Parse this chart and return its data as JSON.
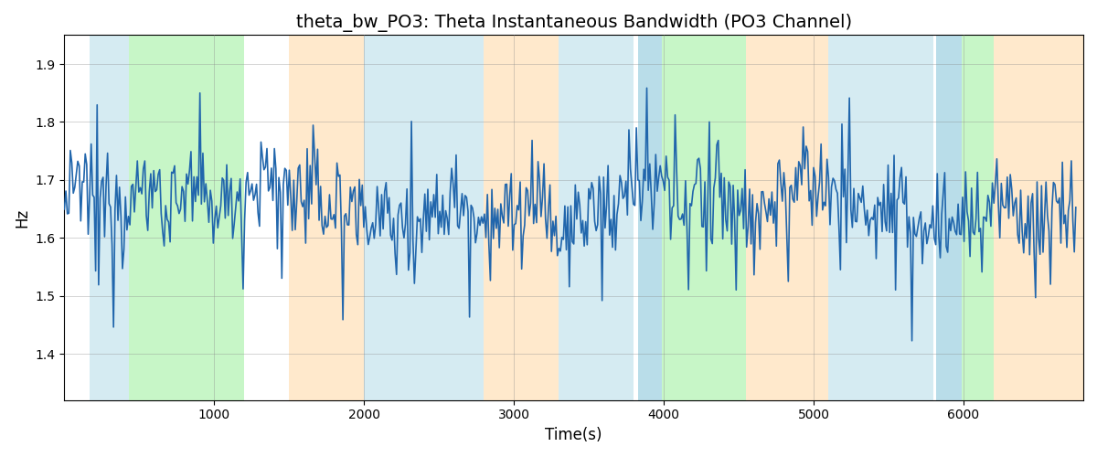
{
  "title": "theta_bw_PO3: Theta Instantaneous Bandwidth (PO3 Channel)",
  "xlabel": "Time(s)",
  "ylabel": "Hz",
  "ylim": [
    1.32,
    1.95
  ],
  "xlim": [
    0,
    6800
  ],
  "title_fontsize": 14,
  "label_fontsize": 12,
  "line_color": "#2166ac",
  "line_width": 1.2,
  "background_color": "#ffffff",
  "grid_color": "#888888",
  "bands": [
    {
      "xmin": 170,
      "xmax": 430,
      "color": "#add8e6",
      "alpha": 0.5
    },
    {
      "xmin": 430,
      "xmax": 1200,
      "color": "#90ee90",
      "alpha": 0.5
    },
    {
      "xmin": 1500,
      "xmax": 2000,
      "color": "#ffd59a",
      "alpha": 0.5
    },
    {
      "xmin": 2000,
      "xmax": 2800,
      "color": "#add8e6",
      "alpha": 0.5
    },
    {
      "xmin": 2800,
      "xmax": 3300,
      "color": "#ffd59a",
      "alpha": 0.5
    },
    {
      "xmin": 3300,
      "xmax": 3800,
      "color": "#add8e6",
      "alpha": 0.5
    },
    {
      "xmin": 3830,
      "xmax": 3990,
      "color": "#add8e6",
      "alpha": 0.85
    },
    {
      "xmin": 3990,
      "xmax": 4550,
      "color": "#90ee90",
      "alpha": 0.5
    },
    {
      "xmin": 4550,
      "xmax": 5100,
      "color": "#ffd59a",
      "alpha": 0.5
    },
    {
      "xmin": 5100,
      "xmax": 5800,
      "color": "#add8e6",
      "alpha": 0.5
    },
    {
      "xmin": 5820,
      "xmax": 5990,
      "color": "#add8e6",
      "alpha": 0.85
    },
    {
      "xmin": 5990,
      "xmax": 6200,
      "color": "#90ee90",
      "alpha": 0.5
    },
    {
      "xmin": 6200,
      "xmax": 6800,
      "color": "#ffd59a",
      "alpha": 0.5
    }
  ],
  "seed": 12345,
  "n_points": 680,
  "base_mean": 1.658,
  "noise_std": 0.042,
  "spike_prob": 0.06,
  "spike_magnitude_down": 0.18,
  "spike_magnitude_up": 0.14
}
